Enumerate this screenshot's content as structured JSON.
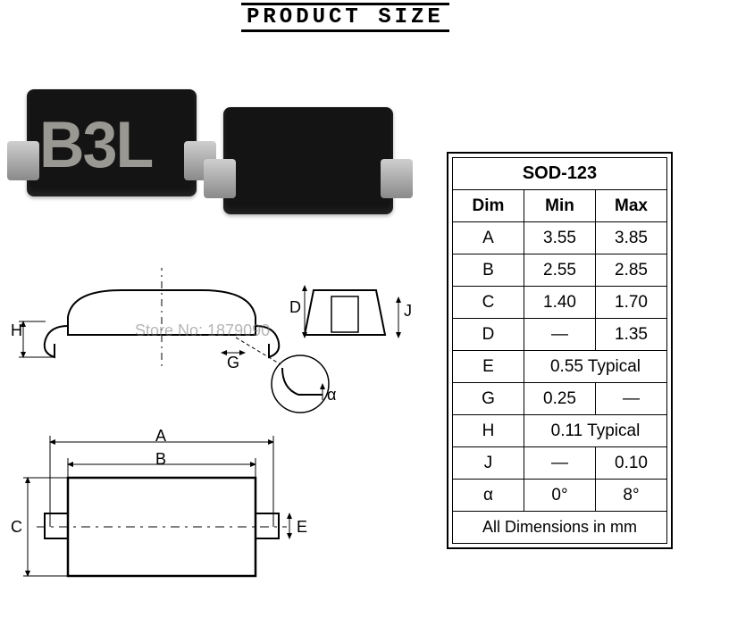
{
  "title": "PRODUCT SIZE",
  "chip_marking": "B3L",
  "watermark": "Store No: 1879090",
  "diagram_labels": {
    "H": "H",
    "D": "D",
    "J": "J",
    "G": "G",
    "A": "A",
    "B": "B",
    "C": "C",
    "E": "E",
    "alpha": "α"
  },
  "table": {
    "title": "SOD-123",
    "columns": [
      "Dim",
      "Min",
      "Max"
    ],
    "rows": [
      {
        "dim": "A",
        "min": "3.55",
        "max": "3.85",
        "span": false
      },
      {
        "dim": "B",
        "min": "2.55",
        "max": "2.85",
        "span": false
      },
      {
        "dim": "C",
        "min": "1.40",
        "max": "1.70",
        "span": false
      },
      {
        "dim": "D",
        "min": "—",
        "max": "1.35",
        "span": false
      },
      {
        "dim": "E",
        "min": "0.55 Typical",
        "max": "",
        "span": true
      },
      {
        "dim": "G",
        "min": "0.25",
        "max": "—",
        "span": false
      },
      {
        "dim": "H",
        "min": "0.11 Typical",
        "max": "",
        "span": true
      },
      {
        "dim": "J",
        "min": "—",
        "max": "0.10",
        "span": false
      },
      {
        "dim": "α",
        "min": "0°",
        "max": "8°",
        "span": false
      }
    ],
    "footer": "All Dimensions in mm"
  },
  "colors": {
    "text": "#000000",
    "chip_body": "#141414",
    "chip_mark": "#9a9892",
    "pin": "#b8b8b8",
    "watermark": "rgba(120,120,120,0.55)",
    "background": "#ffffff"
  },
  "diagram_style": {
    "stroke": "#000000",
    "stroke_width_main": 2,
    "stroke_width_thin": 1,
    "dash": "6 5",
    "arrow_size": 7
  }
}
